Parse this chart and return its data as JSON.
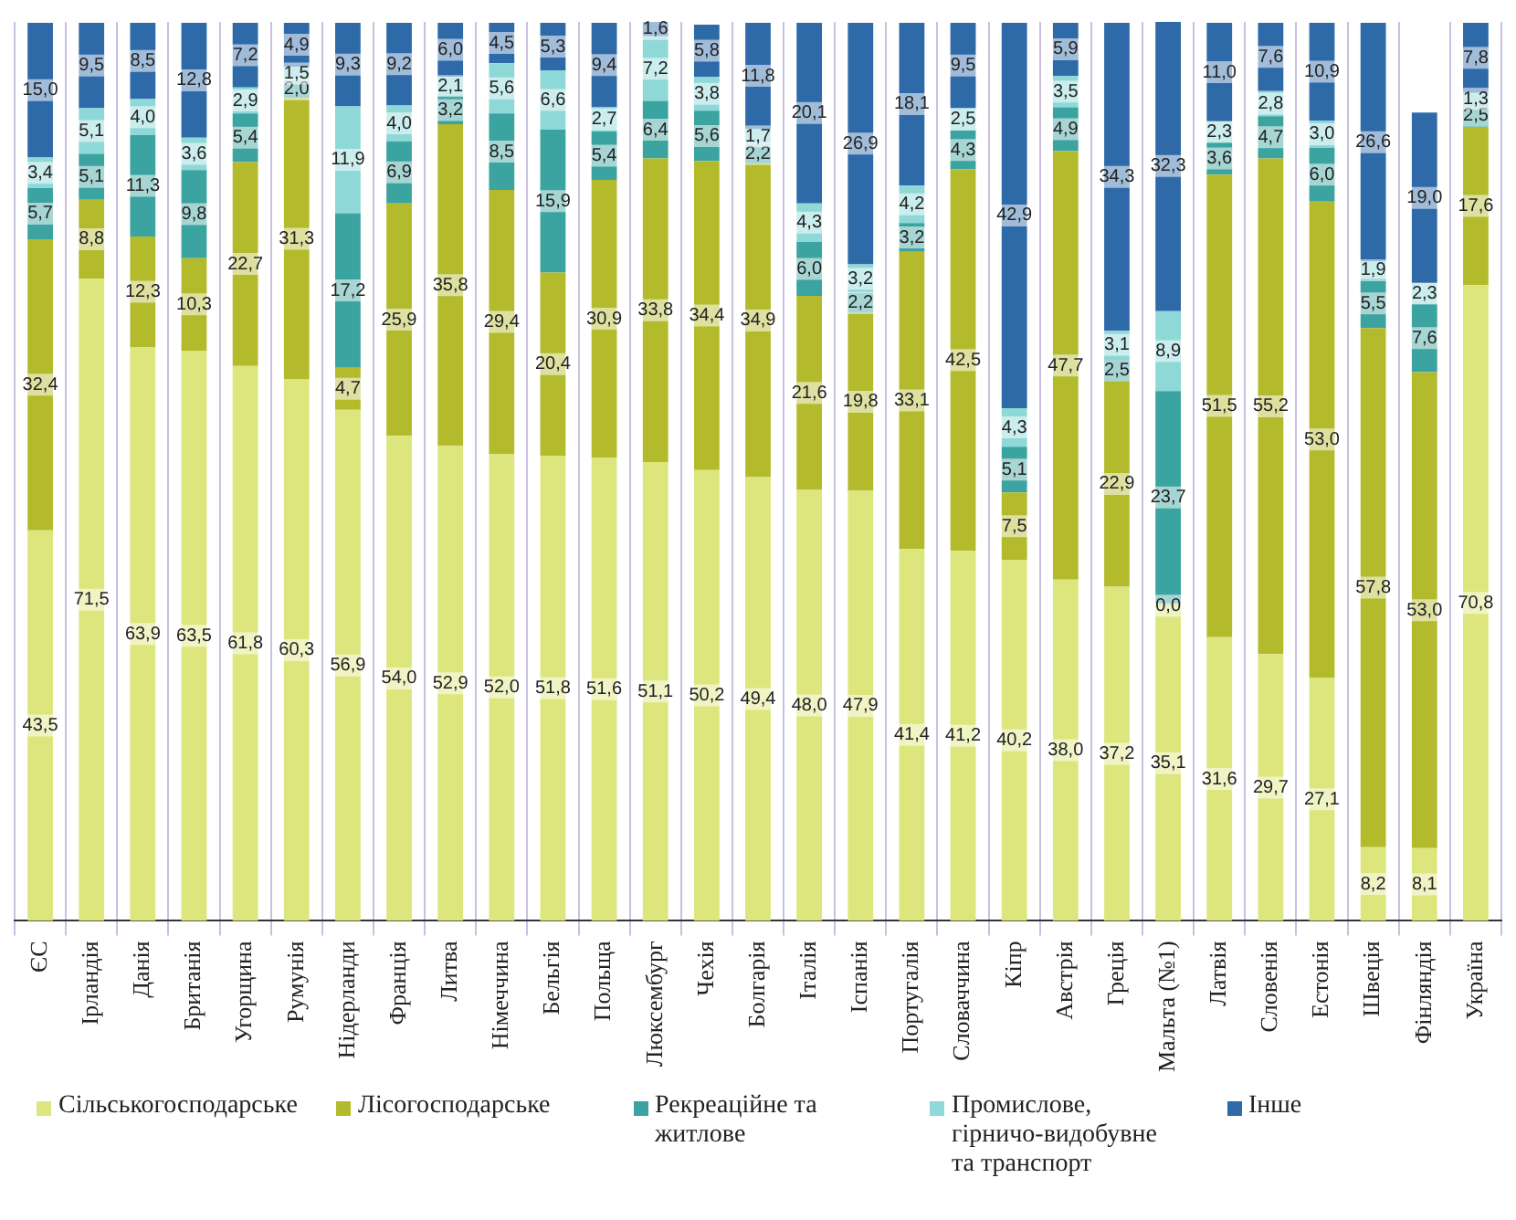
{
  "chart_data": {
    "type": "bar",
    "stacked": true,
    "categories": [
      "ЄС",
      "Ірландія",
      "Данія",
      "Британія",
      "Угорщина",
      "Румунія",
      "Нідерланди",
      "Франція",
      "Литва",
      "Німеччина",
      "Бельгія",
      "Польща",
      "Люксембург",
      "Чехія",
      "Болгарія",
      "Італія",
      "Іспанія",
      "Португалія",
      "Словаччина",
      "Кіпр",
      "Австрія",
      "Греція",
      "Мальта (№1)",
      "Латвія",
      "Словенія",
      "Естонія",
      "Швеція",
      "Фінляндія",
      "Україна"
    ],
    "series": [
      {
        "name": "Сільськогосподарське",
        "color": "#dde67c",
        "values": [
          43.5,
          71.5,
          63.9,
          63.5,
          61.8,
          60.3,
          56.9,
          54.0,
          52.9,
          52.0,
          51.8,
          51.6,
          51.1,
          50.2,
          49.4,
          48.0,
          47.9,
          41.4,
          41.2,
          40.2,
          38.0,
          37.2,
          35.1,
          31.6,
          29.7,
          27.1,
          8.2,
          8.1,
          70.8
        ],
        "value_labels": [
          "43,5",
          "71,5",
          "63,9",
          "63,5",
          "61,8",
          "60,3",
          "56,9",
          "54,0",
          "52,9",
          "52,0",
          "51,8",
          "51,6",
          "51,1",
          "50,2",
          "49,4",
          "48,0",
          "47,9",
          "41,4",
          "41,2",
          "40,2",
          "38,0",
          "37,2",
          "35,1",
          "31,6",
          "29,7",
          "27,1",
          "8,2",
          "8,1",
          "70,8"
        ]
      },
      {
        "name": "Лісогосподарське",
        "color": "#b3bb2c",
        "values": [
          32.4,
          8.8,
          12.3,
          10.3,
          22.7,
          31.3,
          4.7,
          25.9,
          35.8,
          29.4,
          20.4,
          30.9,
          33.8,
          34.4,
          34.9,
          21.6,
          19.8,
          33.1,
          42.5,
          7.5,
          47.7,
          22.9,
          0.0,
          51.5,
          55.2,
          53.0,
          57.8,
          53.0,
          17.6
        ],
        "value_labels": [
          "32,4",
          "8,8",
          "12,3",
          "10,3",
          "22,7",
          "31,3",
          "4,7",
          "25,9",
          "35,8",
          "29,4",
          "20,4",
          "30,9",
          "33,8",
          "34,4",
          "34,9",
          "21,6",
          "19,8",
          "33,1",
          "42,5",
          "7,5",
          "47,7",
          "22,9",
          "0,0",
          "51,5",
          "55,2",
          "53,0",
          "57,8",
          "53,0",
          "17,6"
        ]
      },
      {
        "name": "Рекреаційне та житлове",
        "color": "#3ba3a0",
        "values": [
          5.7,
          5.1,
          11.3,
          9.8,
          5.4,
          2.0,
          17.2,
          6.9,
          3.2,
          8.5,
          15.9,
          5.4,
          6.4,
          5.6,
          2.2,
          6.0,
          2.2,
          3.2,
          4.3,
          5.1,
          4.9,
          2.5,
          23.7,
          3.6,
          4.7,
          6.0,
          5.5,
          7.6,
          2.5
        ],
        "value_labels": [
          "5,7",
          "5,1",
          "11,3",
          "9,8",
          "5,4",
          "2,0",
          "17,2",
          "6,9",
          "3,2",
          "8,5",
          "15,9",
          "5,4",
          "6,4",
          "5,6",
          "2,2",
          "6,0",
          "2,2",
          "3,2",
          "4,3",
          "5,1",
          "4,9",
          "2,5",
          "23,7",
          "3,6",
          "4,7",
          "6,0",
          "5,5",
          "7,6",
          "2,5"
        ]
      },
      {
        "name": "Промислове, гірничо-видобувне та транспорт",
        "color": "#8fd8d8",
        "values": [
          3.4,
          5.1,
          4.0,
          3.6,
          2.9,
          1.5,
          11.9,
          4.0,
          2.1,
          5.6,
          6.6,
          2.7,
          7.2,
          3.8,
          1.7,
          4.3,
          3.2,
          4.2,
          2.5,
          4.3,
          3.5,
          3.1,
          8.9,
          2.3,
          2.8,
          3.0,
          1.9,
          2.3,
          1.3
        ],
        "value_labels": [
          "3,4",
          "5,1",
          "4,0",
          "3,6",
          "2,9",
          "1,5",
          "11,9",
          "4,0",
          "2,1",
          "5,6",
          "6,6",
          "2,7",
          "7,2",
          "3,8",
          "1,7",
          "4,3",
          "3,2",
          "4,2",
          "2,5",
          "4,3",
          "3,5",
          "3,1",
          "8,9",
          "2,3",
          "2,8",
          "3,0",
          "1,9",
          "2,3",
          "1,3"
        ]
      },
      {
        "name": "Інше",
        "color": "#2f6aa8",
        "values": [
          15.0,
          9.5,
          8.5,
          12.8,
          7.2,
          4.9,
          9.3,
          9.2,
          6.0,
          4.5,
          5.3,
          9.4,
          1.6,
          5.8,
          11.8,
          20.1,
          26.9,
          18.1,
          9.5,
          42.9,
          5.9,
          34.3,
          32.3,
          11.0,
          7.6,
          10.9,
          26.6,
          19.0,
          7.8
        ],
        "value_labels": [
          "15,0",
          "9,5",
          "8,5",
          "12,8",
          "7,2",
          "4,9",
          "9,3",
          "9,2",
          "6,0",
          "4,5",
          "5,3",
          "9,4",
          "1,6",
          "5,8",
          "11,8",
          "20,1",
          "26,9",
          "18,1",
          "9,5",
          "42,9",
          "5,9",
          "34,3",
          "32,3",
          "11,0",
          "7,6",
          "10,9",
          "26,6",
          "19,0",
          "7,8"
        ]
      }
    ],
    "tick_labels": "x",
    "grid": "x",
    "legend": "bottom"
  }
}
